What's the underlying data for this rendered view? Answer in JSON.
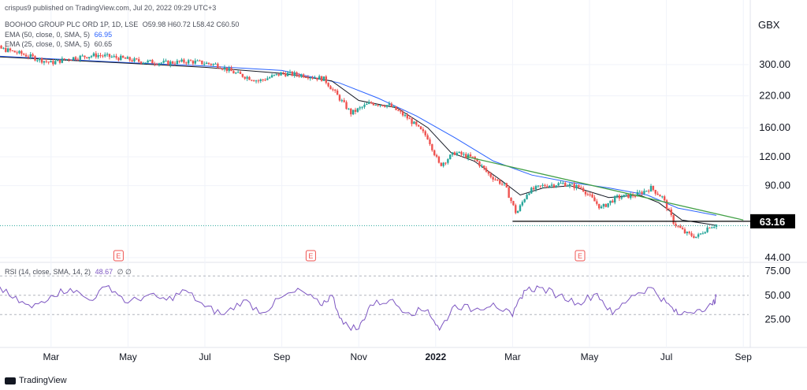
{
  "publish_line": "crispus9 published on TradingView.com, Jul 20, 2022 09:29 UTC+3",
  "legend": {
    "symbol": "BOOHOO GROUP PLC ORD 1P, 1D, LSE",
    "ohlc": "O59.98 H60.72 L58.42 C60.50",
    "ema50_label": "EMA (50, close, 0, SMA, 5)",
    "ema50_value": "66.95",
    "ema25_label": "EMA (25, close, 0, SMA, 5)",
    "ema25_value": "60.65",
    "rsi_label": "RSI (14, close, SMA, 14, 2)",
    "rsi_value": "48.67",
    "rsi_extra": "∅ ∅"
  },
  "currency": "GBX",
  "price_tag": "63.16",
  "footer": "TradingView",
  "colors": {
    "up": "#26a69a",
    "down": "#ef5350",
    "ema50": "#2962ff",
    "ema25": "#131722",
    "trendline": "#43a047",
    "rsi": "#7e57c2",
    "grid": "#f0f3fa"
  },
  "chart_data": [
    {
      "type": "candlestick",
      "title": "BOOHOO GROUP PLC ORD 1P, 1D, LSE",
      "scale": "log",
      "y_tick_labels": [
        "300.00",
        "220.00",
        "160.00",
        "120.00",
        "90.00",
        "44.00"
      ],
      "x_tick_labels": [
        "Mar",
        "May",
        "Jul",
        "Sep",
        "Nov",
        "2022",
        "Mar",
        "May",
        "Jul",
        "Sep"
      ],
      "x_label_months": [
        2,
        4,
        6,
        8,
        10,
        12,
        14,
        16,
        18,
        20
      ],
      "price_path": [
        [
          0,
          325
        ],
        [
          0.6,
          355
        ],
        [
          1.2,
          335
        ],
        [
          2,
          305
        ],
        [
          2.5,
          320
        ],
        [
          3.2,
          330
        ],
        [
          3.8,
          320
        ],
        [
          4.3,
          310
        ],
        [
          5,
          305
        ],
        [
          5.6,
          310
        ],
        [
          6.3,
          300
        ],
        [
          6.8,
          275
        ],
        [
          7.4,
          255
        ],
        [
          8.0,
          275
        ],
        [
          8.6,
          270
        ],
        [
          9.1,
          260
        ],
        [
          9.4,
          225
        ],
        [
          9.8,
          185
        ],
        [
          10.3,
          205
        ],
        [
          10.8,
          200
        ],
        [
          11.3,
          175
        ],
        [
          11.8,
          145
        ],
        [
          12.1,
          110
        ],
        [
          12.5,
          125
        ],
        [
          13.0,
          118
        ],
        [
          13.4,
          100
        ],
        [
          13.8,
          90
        ],
        [
          14.1,
          68
        ],
        [
          14.4,
          85
        ],
        [
          14.8,
          90
        ],
        [
          15.3,
          92
        ],
        [
          15.8,
          88
        ],
        [
          16.3,
          72
        ],
        [
          16.7,
          80
        ],
        [
          17.2,
          82
        ],
        [
          17.6,
          88
        ],
        [
          17.9,
          80
        ],
        [
          18.2,
          62
        ],
        [
          18.5,
          56
        ],
        [
          18.8,
          54
        ],
        [
          19.1,
          60
        ],
        [
          19.3,
          61
        ]
      ],
      "series": [
        {
          "name": "EMA (50, close, 0, SMA, 5)",
          "last": 66.95,
          "points": [
            [
              0,
              330
            ],
            [
              2,
              318
            ],
            [
              4,
              306
            ],
            [
              6,
              296
            ],
            [
              8,
              283
            ],
            [
              9.5,
              250
            ],
            [
              10.5,
              215
            ],
            [
              11.5,
              180
            ],
            [
              12.5,
              145
            ],
            [
              13.5,
              115
            ],
            [
              14.5,
              100
            ],
            [
              15.5,
              93
            ],
            [
              16.5,
              88
            ],
            [
              17.5,
              82
            ],
            [
              18.3,
              72
            ],
            [
              19.3,
              66.95
            ]
          ]
        },
        {
          "name": "EMA (25, close, 0, SMA, 5)",
          "last": 60.65,
          "points": [
            [
              0,
              328
            ],
            [
              2,
              316
            ],
            [
              4,
              304
            ],
            [
              6,
              292
            ],
            [
              8,
              275
            ],
            [
              9.3,
              255
            ],
            [
              10.0,
              210
            ],
            [
              11.0,
              195
            ],
            [
              11.8,
              160
            ],
            [
              12.4,
              125
            ],
            [
              13.0,
              115
            ],
            [
              13.7,
              95
            ],
            [
              14.2,
              82
            ],
            [
              14.8,
              88
            ],
            [
              15.5,
              90
            ],
            [
              16.5,
              80
            ],
            [
              17.3,
              82
            ],
            [
              17.8,
              76
            ],
            [
              18.4,
              64
            ],
            [
              19.3,
              60.65
            ]
          ]
        },
        {
          "name": "trendline",
          "points": [
            [
              12.8,
              120
            ],
            [
              20,
              64
            ]
          ]
        },
        {
          "name": "support",
          "points": [
            [
              14.0,
              63.16
            ],
            [
              20.5,
              63.16
            ]
          ]
        }
      ],
      "events": [
        {
          "label": "E",
          "month": 4
        },
        {
          "label": "E",
          "month": 9
        },
        {
          "label": "E",
          "month": 16
        }
      ],
      "last_close": 60.5,
      "support_level": 63.16
    },
    {
      "type": "line",
      "title": "RSI (14, close, SMA, 14, 2)",
      "y_tick_labels": [
        "75.00",
        "50.00",
        "25.00"
      ],
      "ylim": [
        0,
        80
      ],
      "bands": [
        70,
        50,
        30
      ],
      "series": [
        {
          "name": "RSI (14, close, SMA, 14, 2)",
          "last": 48.67,
          "points": [
            [
              0,
              55
            ],
            [
              0.5,
              63
            ],
            [
              1.0,
              47
            ],
            [
              1.5,
              37
            ],
            [
              2.0,
              50
            ],
            [
              2.5,
              57
            ],
            [
              3.0,
              45
            ],
            [
              3.5,
              60
            ],
            [
              4.0,
              42
            ],
            [
              4.5,
              50
            ],
            [
              5.0,
              45
            ],
            [
              5.5,
              55
            ],
            [
              6.0,
              38
            ],
            [
              6.5,
              30
            ],
            [
              7.0,
              45
            ],
            [
              7.5,
              32
            ],
            [
              8.0,
              48
            ],
            [
              8.5,
              55
            ],
            [
              9.0,
              40
            ],
            [
              9.3,
              50
            ],
            [
              9.6,
              20
            ],
            [
              10.0,
              15
            ],
            [
              10.3,
              40
            ],
            [
              10.8,
              45
            ],
            [
              11.3,
              32
            ],
            [
              11.8,
              35
            ],
            [
              12.1,
              14
            ],
            [
              12.5,
              40
            ],
            [
              13.0,
              35
            ],
            [
              13.5,
              42
            ],
            [
              14.0,
              28
            ],
            [
              14.3,
              55
            ],
            [
              14.7,
              58
            ],
            [
              15.2,
              50
            ],
            [
              15.7,
              42
            ],
            [
              16.2,
              52
            ],
            [
              16.6,
              30
            ],
            [
              17.1,
              50
            ],
            [
              17.6,
              58
            ],
            [
              18.0,
              42
            ],
            [
              18.3,
              30
            ],
            [
              18.8,
              35
            ],
            [
              19.2,
              40
            ],
            [
              19.3,
              48.67
            ]
          ]
        }
      ]
    }
  ]
}
